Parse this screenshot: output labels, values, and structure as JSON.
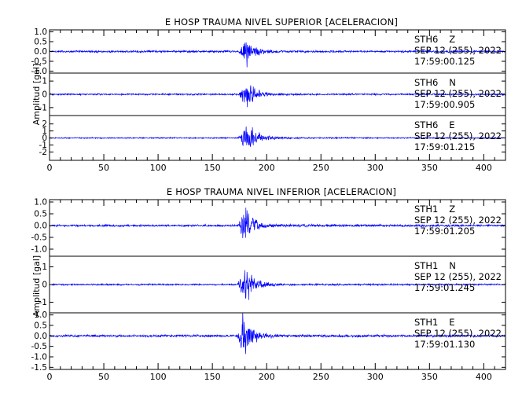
{
  "chart_data": [
    {
      "type": "line",
      "title": "E HOSP TRAUMA NIVEL SUPERIOR [ACELERACION]",
      "ylabel": "Amplitud [gal]",
      "xlim": [
        0,
        420
      ],
      "x_ticks": [
        0,
        50,
        100,
        150,
        200,
        250,
        300,
        350,
        400
      ],
      "x_tick_labels": [
        "0",
        "50",
        "100",
        "150",
        "200",
        "250",
        "300",
        "350",
        "400"
      ],
      "series": [
        {
          "name": "STH6 Z",
          "station": "STH6",
          "component": "Z",
          "date": "SEP 12 (255), 2022",
          "time": "17:59:00.125",
          "ylim": [
            -1.1,
            1.1
          ],
          "y_ticks": [
            1.0,
            0.5,
            0.0,
            -0.5,
            -1.0
          ],
          "y_tick_labels": [
            "1.0",
            "0.5",
            "0.0",
            "-0.5",
            "-1.0"
          ],
          "envelope": [
            [
              0,
              0.06
            ],
            [
              174,
              0.06
            ],
            [
              176,
              0.22
            ],
            [
              178,
              0.45
            ],
            [
              180,
              0.75
            ],
            [
              182,
              0.95
            ],
            [
              184,
              0.6
            ],
            [
              187,
              0.4
            ],
            [
              190,
              0.28
            ],
            [
              195,
              0.18
            ],
            [
              200,
              0.12
            ],
            [
              210,
              0.08
            ],
            [
              230,
              0.06
            ],
            [
              420,
              0.06
            ]
          ]
        },
        {
          "name": "STH6 N",
          "station": "STH6",
          "component": "N",
          "date": "SEP 12 (255), 2022",
          "time": "17:59:00.905",
          "ylim": [
            -1.6,
            1.6
          ],
          "y_ticks": [
            1,
            0,
            -1
          ],
          "y_tick_labels": [
            "1",
            "0",
            "-1"
          ],
          "envelope": [
            [
              0,
              0.07
            ],
            [
              174,
              0.07
            ],
            [
              176,
              0.3
            ],
            [
              179,
              0.8
            ],
            [
              181,
              1.3
            ],
            [
              184,
              1.05
            ],
            [
              187,
              0.7
            ],
            [
              190,
              0.5
            ],
            [
              195,
              0.3
            ],
            [
              200,
              0.2
            ],
            [
              210,
              0.12
            ],
            [
              230,
              0.08
            ],
            [
              420,
              0.07
            ]
          ]
        },
        {
          "name": "STH6 E",
          "station": "STH6",
          "component": "E",
          "date": "SEP 12 (255), 2022",
          "time": "17:59:01.215",
          "ylim": [
            -3.2,
            3.2
          ],
          "y_ticks": [
            2,
            1,
            0,
            -1,
            -2
          ],
          "y_tick_labels": [
            "2",
            "1",
            "0",
            "-1",
            "-2"
          ],
          "envelope": [
            [
              0,
              0.1
            ],
            [
              173,
              0.1
            ],
            [
              176,
              0.6
            ],
            [
              179,
              1.8
            ],
            [
              182,
              2.5
            ],
            [
              185,
              2.0
            ],
            [
              188,
              1.4
            ],
            [
              192,
              1.0
            ],
            [
              197,
              0.6
            ],
            [
              203,
              0.35
            ],
            [
              215,
              0.2
            ],
            [
              235,
              0.12
            ],
            [
              420,
              0.1
            ]
          ]
        }
      ]
    },
    {
      "type": "line",
      "title": "E HOSP TRAUMA NIVEL INFERIOR [ACELERACION]",
      "ylabel": "Amplitud [gal]",
      "xlim": [
        0,
        420
      ],
      "x_ticks": [
        0,
        50,
        100,
        150,
        200,
        250,
        300,
        350,
        400
      ],
      "x_tick_labels": [
        "0",
        "50",
        "100",
        "150",
        "200",
        "250",
        "300",
        "350",
        "400"
      ],
      "series": [
        {
          "name": "STH1 Z",
          "station": "STH1",
          "component": "Z",
          "date": "SEP 12 (255), 2022",
          "time": "17:59:01.205",
          "ylim": [
            -1.3,
            1.1
          ],
          "y_ticks": [
            1.0,
            0.5,
            0.0,
            -0.5,
            -1.0
          ],
          "y_tick_labels": [
            "1.0",
            "0.5",
            "0.0",
            "-0.5",
            "-1.0"
          ],
          "envelope": [
            [
              0,
              0.05
            ],
            [
              173,
              0.05
            ],
            [
              175,
              0.3
            ],
            [
              177,
              0.65
            ],
            [
              179,
              0.95
            ],
            [
              181,
              1.05
            ],
            [
              183,
              0.7
            ],
            [
              186,
              0.45
            ],
            [
              190,
              0.28
            ],
            [
              195,
              0.17
            ],
            [
              202,
              0.1
            ],
            [
              215,
              0.07
            ],
            [
              420,
              0.05
            ]
          ]
        },
        {
          "name": "STH1 N",
          "station": "STH1",
          "component": "N",
          "date": "SEP 12 (255), 2022",
          "time": "17:59:01.245",
          "ylim": [
            -1.6,
            1.6
          ],
          "y_ticks": [
            1,
            0,
            -1
          ],
          "y_tick_labels": [
            "1",
            "0",
            "-1"
          ],
          "envelope": [
            [
              0,
              0.05
            ],
            [
              173,
              0.05
            ],
            [
              175,
              0.35
            ],
            [
              177,
              0.75
            ],
            [
              180,
              1.3
            ],
            [
              182,
              1.1
            ],
            [
              185,
              0.75
            ],
            [
              188,
              0.5
            ],
            [
              192,
              0.3
            ],
            [
              198,
              0.18
            ],
            [
              205,
              0.1
            ],
            [
              220,
              0.06
            ],
            [
              420,
              0.05
            ]
          ]
        },
        {
          "name": "STH1 E",
          "station": "STH1",
          "component": "E",
          "date": "SEP 12 (255), 2022",
          "time": "17:59:01.130",
          "ylim": [
            -1.6,
            1.1
          ],
          "y_ticks": [
            1.0,
            0.5,
            0.0,
            -0.5,
            -1.0,
            -1.5
          ],
          "y_tick_labels": [
            "1.0",
            "0.5",
            "0.0",
            "-0.5",
            "-1.0",
            "-1.5"
          ],
          "envelope": [
            [
              0,
              0.06
            ],
            [
              172,
              0.06
            ],
            [
              174,
              0.35
            ],
            [
              176,
              0.8
            ],
            [
              178,
              1.2
            ],
            [
              180,
              1.3
            ],
            [
              183,
              0.9
            ],
            [
              186,
              0.6
            ],
            [
              190,
              0.38
            ],
            [
              195,
              0.22
            ],
            [
              202,
              0.13
            ],
            [
              215,
              0.08
            ],
            [
              420,
              0.06
            ]
          ]
        }
      ]
    }
  ],
  "style": {
    "trace_color": "#0000ff",
    "axis_color": "#000000",
    "background": "#ffffff"
  }
}
